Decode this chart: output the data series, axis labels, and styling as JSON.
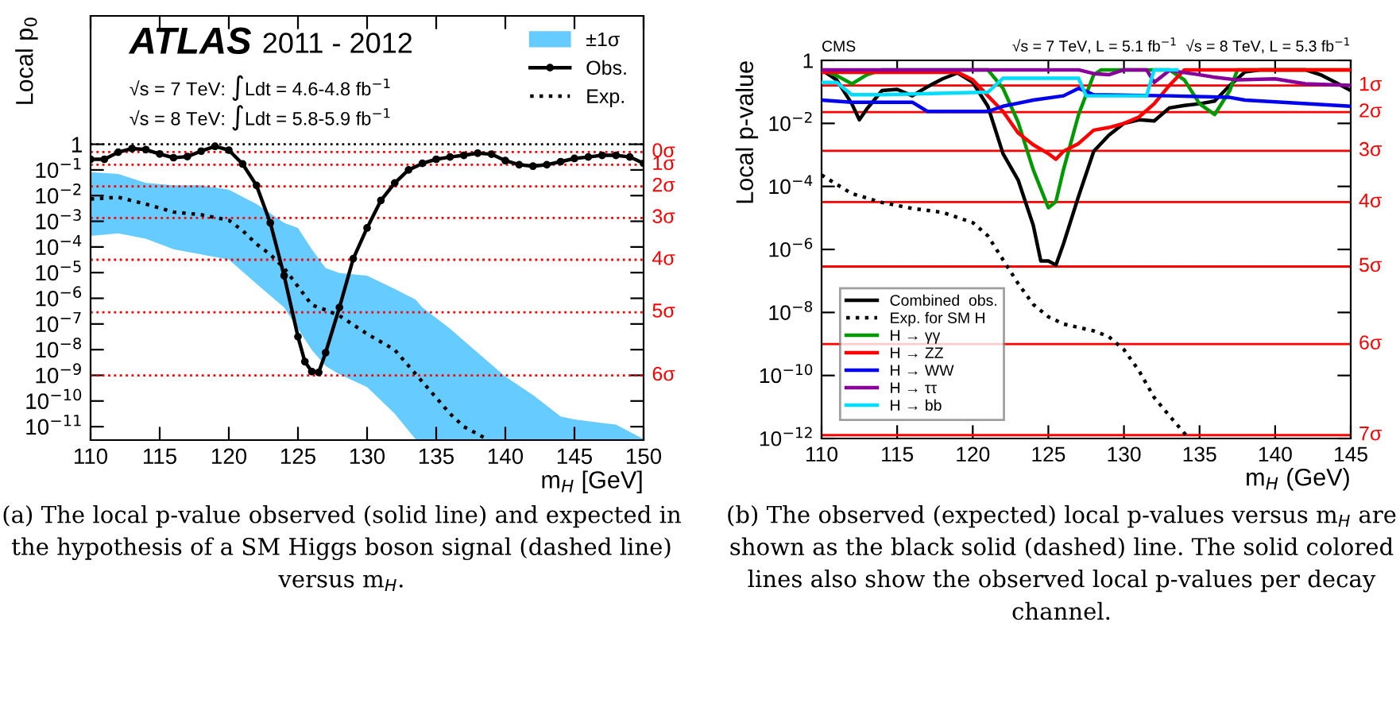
{
  "chart_data": [
    {
      "type": "line",
      "ylabel": "Local p$_{0}$",
      "xlabel": "m$_{H}$ [GeV]",
      "log": "y",
      "legend": "top right",
      "grid": false,
      "xlim": [
        110,
        150
      ],
      "xticks": [
        110,
        115,
        120,
        125,
        130,
        135,
        140,
        145,
        150
      ],
      "ylim": [
        3e-12,
        100000
      ],
      "yticks": [
        1,
        {
          "value": 0.1,
          "label": "10$^{−1}$"
        },
        {
          "value": 0.01,
          "label": "10$^{−2}$"
        },
        {
          "value": 0.001,
          "label": "10$^{−3}$"
        },
        {
          "value": 0.0001,
          "label": "10$^{−4}$"
        },
        {
          "value": 1e-05,
          "label": "10$^{−5}$"
        },
        {
          "value": 1e-06,
          "label": "10$^{−6}$"
        },
        {
          "value": 1e-07,
          "label": "10$^{−7}$"
        },
        {
          "value": 1e-08,
          "label": "10$^{−8}$"
        },
        {
          "value": 1e-09,
          "label": "10$^{−9}$"
        },
        {
          "value": 1e-10,
          "label": "10$^{−10}$"
        },
        {
          "value": 1e-11,
          "label": "10$^{−11}$"
        }
      ],
      "annotations": [
        "ATLAS",
        "2011 - 2012",
        "√s = 7 TeV: ∫Ldt = 4.6-4.8 fb$^{−1}$",
        "√s = 8 TeV: ∫Ldt = 5.8-5.9 fb$^{−1}$",
        "(a) The local p-value observed (solid line) and expected in the hypothesis of a SM Higgs boson signal (dashed line) versus m$_{H}$."
      ],
      "ref_lines": [
        {
          "axis": "y",
          "value": 1,
          "label": null,
          "color": "#000000",
          "line_style": "dotted"
        },
        {
          "axis": "y",
          "value": 0.5,
          "label": "0σ",
          "color": "#ff0000",
          "line_style": "dotted"
        },
        {
          "axis": "y",
          "value": 0.159,
          "label": "1σ",
          "color": "#ff0000",
          "line_style": "dotted"
        },
        {
          "axis": "y",
          "value": 0.0228,
          "label": "2σ",
          "color": "#ff0000",
          "line_style": "dotted"
        },
        {
          "axis": "y",
          "value": 0.00135,
          "label": "3σ",
          "color": "#ff0000",
          "line_style": "dotted"
        },
        {
          "axis": "y",
          "value": 3.17e-05,
          "label": "4σ",
          "color": "#ff0000",
          "line_style": "dotted"
        },
        {
          "axis": "y",
          "value": 2.87e-07,
          "label": "5σ",
          "color": "#ff0000",
          "line_style": "dotted"
        },
        {
          "axis": "y",
          "value": 9.87e-10,
          "label": "6σ",
          "color": "#ff0000",
          "line_style": "dotted"
        }
      ],
      "series": [
        {
          "name": "±1σ",
          "type": "area",
          "color": "#66ccff",
          "values": [
            null,
            null,
            null,
            null,
            null,
            null,
            null,
            null,
            null,
            null,
            null,
            null,
            null,
            null,
            null,
            null,
            null,
            null,
            null,
            null,
            null,
            null,
            null,
            null
          ],
          "x": [
            110,
            112,
            114,
            116,
            118,
            120,
            122,
            124,
            125,
            126,
            127,
            128,
            130,
            132,
            133.5,
            134,
            136,
            138,
            140,
            142,
            144,
            145,
            148,
            150
          ],
          "upper": [
            0.081,
            0.07,
            0.031,
            0.025,
            0.025,
            0.017,
            0.0047,
            0.00087,
            0.00055,
            8.1e-05,
            1.5e-05,
            9.6e-06,
            7.6e-06,
            2.3e-06,
            9e-07,
            4.4e-07,
            6.5e-08,
            7.6e-09,
            8.9e-10,
            1.7e-10,
            2.5e-11,
            1.9e-11,
            1.2e-11,
            3.3e-12
          ],
          "lower": [
            0.00027,
            0.00034,
            0.00021,
            8.1e-05,
            5.1e-05,
            3.2e-05,
            3.7e-06,
            4.4e-07,
            6.5e-08,
            9.8e-09,
            2.3e-09,
            1.1e-09,
            3.5e-10,
            3.2e-11,
            3.3e-12,
            3e-12,
            3e-12,
            3e-12,
            3e-12,
            3e-12,
            3e-12,
            3e-12,
            3e-12,
            3e-12
          ]
        },
        {
          "name": "Obs.",
          "color": "#000000",
          "line_style": "solid",
          "marker": "circle",
          "x": [
            110,
            111,
            112,
            113,
            114,
            115,
            116,
            117,
            118,
            119,
            120,
            121,
            122,
            123,
            124,
            125,
            125.5,
            126,
            126.5,
            127,
            128,
            129,
            130,
            131,
            132,
            133,
            134,
            135,
            136,
            137,
            138,
            139,
            140,
            141,
            142,
            143,
            144,
            145,
            146,
            147,
            148,
            149,
            150
          ],
          "values": [
            0.26,
            0.26,
            0.49,
            0.68,
            0.62,
            0.42,
            0.3,
            0.33,
            0.54,
            0.83,
            0.59,
            0.17,
            0.025,
            0.00087,
            7.6e-06,
            3.2e-08,
            3.4e-09,
            1.4e-09,
            1.3e-09,
            7.6e-09,
            4.4e-07,
            3.5e-05,
            0.00055,
            0.0065,
            0.031,
            0.1,
            0.18,
            0.26,
            0.32,
            0.37,
            0.45,
            0.41,
            0.23,
            0.16,
            0.14,
            0.16,
            0.21,
            0.28,
            0.32,
            0.37,
            0.37,
            0.32,
            0.18
          ]
        },
        {
          "name": "Exp.",
          "color": "#000000",
          "line_style": "dotted",
          "x": [
            110,
            112,
            114,
            116,
            118,
            120,
            121,
            122,
            123,
            124,
            125,
            126,
            127,
            128,
            130,
            132,
            134,
            136,
            137,
            138.8
          ],
          "values": [
            0.0074,
            0.0086,
            0.0047,
            0.0023,
            0.0018,
            0.0011,
            0.00043,
            0.00013,
            5.1e-05,
            1.5e-05,
            2.9e-06,
            5.5e-07,
            3.5e-07,
            2.1e-07,
            4.1e-08,
            9.8e-09,
            5.6e-10,
            3.2e-11,
            1e-11,
            3e-12
          ]
        }
      ]
    },
    {
      "type": "line",
      "ylabel": "Local p-value",
      "xlabel": "m$_{H}$ (GeV)",
      "log": "y",
      "legend": "bottom left",
      "grid": false,
      "xlim": [
        110,
        145
      ],
      "xticks": [
        110,
        115,
        120,
        125,
        130,
        135,
        140,
        145
      ],
      "ylim": [
        1e-12,
        1
      ],
      "yticks": [
        1,
        {
          "value": 0.01,
          "label": "10$^{−2}$"
        },
        {
          "value": 0.0001,
          "label": "10$^{−4}$"
        },
        {
          "value": 1e-06,
          "label": "10$^{−6}$"
        },
        {
          "value": 1e-08,
          "label": "10$^{−8}$"
        },
        {
          "value": 1e-10,
          "label": "10$^{−10}$"
        },
        {
          "value": 1e-12,
          "label": "10$^{−12}$"
        }
      ],
      "annotations": [
        "CMS",
        "√s = 7 TeV, L = 5.1 fb$^{−1}$  √s = 8 TeV, L = 5.3 fb$^{−1}$",
        "(b) The observed (expected) local p-values versus m$_{H}$ are shown as the black solid (dashed) line. The solid colored lines also show the observed local p-values per decay channel."
      ],
      "ref_lines": [
        {
          "axis": "y",
          "value": 0.159,
          "label": "1σ",
          "color": "#ff0000",
          "line_style": "solid"
        },
        {
          "axis": "y",
          "value": 0.0228,
          "label": "2σ",
          "color": "#ff0000",
          "line_style": "solid"
        },
        {
          "axis": "y",
          "value": 0.00135,
          "label": "3σ",
          "color": "#ff0000",
          "line_style": "solid"
        },
        {
          "axis": "y",
          "value": 3.17e-05,
          "label": "4σ",
          "color": "#ff0000",
          "line_style": "solid"
        },
        {
          "axis": "y",
          "value": 2.87e-07,
          "label": "5σ",
          "color": "#ff0000",
          "line_style": "solid"
        },
        {
          "axis": "y",
          "value": 9.87e-10,
          "label": "6σ",
          "color": "#ff0000",
          "line_style": "solid"
        },
        {
          "axis": "y",
          "value": 1.28e-12,
          "label": "7σ",
          "color": "#ff0000",
          "line_style": "solid"
        }
      ],
      "series": [
        {
          "name": "Combined  obs.",
          "color": "#000000",
          "line_style": "solid",
          "x": [
            110,
            111,
            112,
            112.5,
            113,
            114,
            115,
            116,
            117,
            118,
            119,
            120,
            121,
            122,
            123,
            124,
            124.5,
            125,
            125.5,
            126,
            127,
            128,
            129,
            130,
            131,
            132,
            133,
            134,
            135,
            136,
            137,
            138,
            139,
            142,
            143,
            144,
            145
          ],
          "values": [
            0.5,
            0.24,
            0.042,
            0.013,
            0.029,
            0.11,
            0.12,
            0.075,
            0.145,
            0.26,
            0.4,
            0.2,
            0.035,
            0.0011,
            0.00016,
            5.9e-06,
            4.3e-07,
            4.3e-07,
            3.2e-07,
            1.5e-06,
            4.9e-05,
            0.0013,
            0.0042,
            0.01,
            0.013,
            0.012,
            0.031,
            0.037,
            0.042,
            0.051,
            0.16,
            0.43,
            0.5,
            0.5,
            0.35,
            0.2,
            0.11
          ]
        },
        {
          "name": "Exp. for SM H",
          "color": "#000000",
          "line_style": "dotted",
          "x": [
            110,
            112,
            114,
            116,
            118,
            120,
            121,
            122,
            123,
            124,
            125,
            126,
            128,
            129,
            130,
            131,
            132,
            133,
            134.3
          ],
          "values": [
            0.00023,
            5.9e-05,
            3.1e-05,
            2e-05,
            1.5e-05,
            7.1e-06,
            2.7e-06,
            4.7e-07,
            8.3e-08,
            1.8e-08,
            7.3e-09,
            4.3e-09,
            2.6e-09,
            1.7e-09,
            6.6e-10,
            1.4e-10,
            2e-11,
            5.3e-12,
            1e-12
          ]
        },
        {
          "name": "H → γγ",
          "color": "#009900",
          "line_style": "solid",
          "x": [
            110,
            111,
            112,
            113,
            114,
            121,
            122,
            123,
            124,
            125,
            125.5,
            126,
            127,
            128,
            128.5,
            133,
            134,
            135,
            136,
            137,
            137.5,
            145
          ],
          "values": [
            0.5,
            0.33,
            0.18,
            0.35,
            0.5,
            0.5,
            0.13,
            0.011,
            0.00034,
            2.1e-05,
            3.3e-05,
            0.00034,
            0.019,
            0.35,
            0.5,
            0.5,
            0.24,
            0.042,
            0.019,
            0.11,
            0.5,
            0.5
          ]
        },
        {
          "name": "H → ZZ",
          "color": "#ff0000",
          "line_style": "solid",
          "x": [
            110,
            112,
            113,
            119,
            120,
            121,
            122,
            123,
            124,
            125,
            125.5,
            126,
            127,
            128,
            129,
            130,
            131,
            132,
            133,
            134,
            145
          ],
          "values": [
            0.42,
            0.42,
            0.42,
            0.42,
            0.24,
            0.075,
            0.024,
            0.005,
            0.0021,
            0.0011,
            0.00073,
            0.0013,
            0.0023,
            0.0061,
            0.0074,
            0.01,
            0.016,
            0.042,
            0.16,
            0.5,
            0.5
          ]
        },
        {
          "name": "H → WW",
          "color": "#0000ee",
          "line_style": "solid",
          "x": [
            110,
            112,
            116,
            117,
            121,
            122,
            124,
            126,
            127,
            128,
            133,
            137,
            138,
            145
          ],
          "values": [
            0.055,
            0.047,
            0.047,
            0.024,
            0.024,
            0.035,
            0.055,
            0.075,
            0.13,
            0.081,
            0.075,
            0.067,
            0.055,
            0.035
          ]
        },
        {
          "name": "H → ττ",
          "color": "#880099",
          "line_style": "solid",
          "x": [
            110,
            127,
            128,
            129,
            130,
            131.5,
            132,
            133,
            135,
            136,
            137.5,
            140,
            142,
            145
          ],
          "values": [
            0.5,
            0.5,
            0.38,
            0.35,
            0.5,
            0.5,
            0.2,
            0.48,
            0.35,
            0.29,
            0.24,
            0.26,
            0.18,
            0.16
          ]
        },
        {
          "name": "H → bb",
          "color": "#00ddff",
          "line_style": "solid",
          "x": [
            110,
            111,
            112,
            114,
            121,
            122,
            127,
            127.5,
            131.5,
            132,
            133.5
          ],
          "values": [
            0.2,
            0.2,
            0.081,
            0.081,
            0.098,
            0.27,
            0.27,
            0.075,
            0.075,
            0.5,
            0.5
          ]
        }
      ]
    }
  ]
}
